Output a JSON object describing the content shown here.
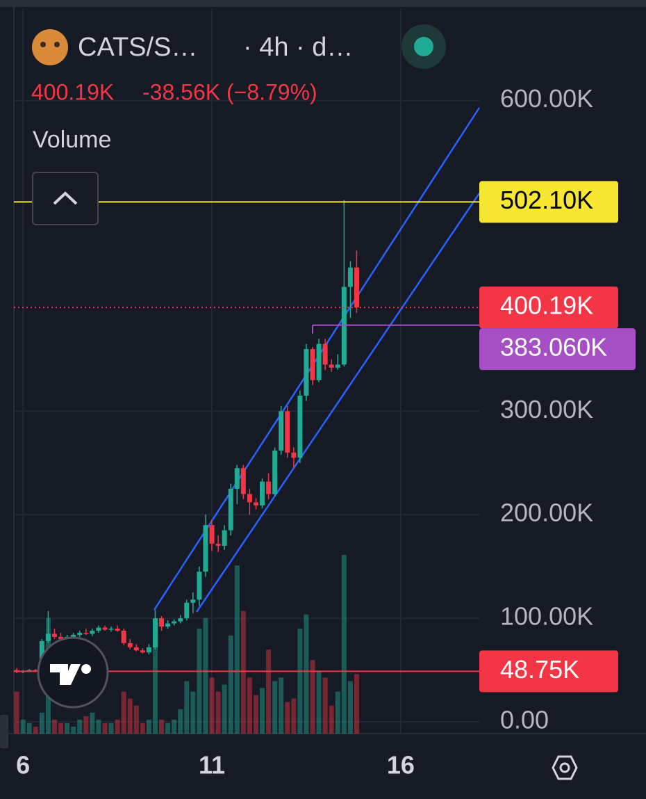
{
  "chart_data": {
    "type": "candlestick",
    "symbol": "CATS/S…",
    "interval": "· 4h · d…",
    "last_price": "400.19K",
    "change": "-38.56K (−8.79%)",
    "indicator": "Volume",
    "up_color": "#22ab94",
    "down_color": "#f23645",
    "x": [
      5.833,
      6,
      6.167,
      6.333,
      6.5,
      6.667,
      6.833,
      7,
      7.167,
      7.333,
      7.5,
      7.667,
      7.833,
      8,
      8.167,
      8.333,
      8.5,
      8.667,
      8.833,
      9,
      9.167,
      9.333,
      9.5,
      9.667,
      9.833,
      10,
      10.167,
      10.333,
      10.5,
      10.667,
      10.833,
      11,
      11.167,
      11.333,
      11.5,
      11.667,
      11.833,
      12,
      12.167,
      12.333,
      12.5,
      12.667,
      12.833,
      13,
      13.167,
      13.333,
      13.5,
      13.667,
      13.833,
      14,
      14.167,
      14.333,
      14.5,
      14.667,
      14.833
    ],
    "open": [
      50,
      48,
      49,
      50,
      49,
      78,
      85,
      82,
      80,
      82,
      84,
      86,
      85,
      88,
      91,
      89,
      90,
      88,
      76,
      72,
      69,
      67,
      72,
      100,
      92,
      95,
      97,
      100,
      115,
      118,
      145,
      190,
      172,
      170,
      185,
      225,
      245,
      220,
      212,
      209,
      232,
      220,
      262,
      300,
      260,
      255,
      315,
      360,
      330,
      365,
      345,
      342,
      345,
      420,
      438.75
    ],
    "high": [
      52,
      50,
      51,
      51,
      80,
      107,
      90,
      86,
      84,
      86,
      88,
      90,
      90,
      93,
      93,
      92,
      93,
      90,
      80,
      75,
      71,
      75,
      108,
      102,
      98,
      99,
      103,
      118,
      125,
      150,
      200,
      195,
      180,
      190,
      230,
      248,
      248,
      225,
      216,
      235,
      240,
      265,
      305,
      305,
      265,
      320,
      365,
      362,
      370,
      370,
      350,
      355,
      504,
      445,
      455
    ],
    "low": [
      47,
      47,
      48,
      48,
      48,
      76,
      80,
      78,
      78,
      80,
      82,
      84,
      83,
      86,
      88,
      87,
      87,
      74,
      70,
      68,
      66,
      65,
      70,
      88,
      90,
      93,
      95,
      98,
      105,
      112,
      140,
      165,
      164,
      166,
      180,
      210,
      215,
      200,
      205,
      206,
      215,
      218,
      258,
      255,
      245,
      250,
      310,
      325,
      328,
      340,
      338,
      340,
      343,
      390,
      395
    ],
    "close": [
      48,
      49,
      50,
      49,
      78,
      85,
      82,
      80,
      82,
      84,
      86,
      85,
      88,
      91,
      89,
      90,
      88,
      76,
      72,
      69,
      67,
      72,
      100,
      92,
      95,
      97,
      100,
      115,
      118,
      145,
      190,
      172,
      170,
      185,
      225,
      245,
      220,
      212,
      209,
      232,
      220,
      262,
      300,
      260,
      255,
      315,
      360,
      330,
      365,
      345,
      342,
      345,
      420,
      438.75,
      400.19
    ],
    "volume": [
      60,
      20,
      15,
      10,
      30,
      165,
      20,
      15,
      15,
      10,
      20,
      25,
      30,
      20,
      15,
      15,
      20,
      60,
      50,
      40,
      15,
      20,
      130,
      20,
      15,
      20,
      35,
      75,
      60,
      150,
      165,
      80,
      60,
      70,
      140,
      240,
      175,
      80,
      55,
      65,
      120,
      75,
      80,
      45,
      50,
      150,
      170,
      105,
      90,
      80,
      40,
      60,
      255,
      75,
      85
    ],
    "xlim": [
      5.39,
      18.08
    ],
    "xticks": [
      6,
      11,
      16
    ],
    "ylim": [
      -11.4,
      697.1
    ],
    "yticks": [
      {
        "value": 600,
        "label": "600.00K"
      },
      {
        "value": 300,
        "label": "300.00K"
      },
      {
        "value": 200,
        "label": "200.00K"
      },
      {
        "value": 100,
        "label": "100.00K"
      },
      {
        "value": 0,
        "label": "0.00"
      }
    ],
    "price_lines": [
      {
        "value": 502.1,
        "label": "502.10K",
        "color": "#f7e733",
        "style": "solid"
      },
      {
        "value": 400.19,
        "label": "400.19K",
        "color": "#f23645",
        "style": "dotted"
      },
      {
        "value": 383.06,
        "label": "383.060K",
        "color": "#a64fc4",
        "style": "solid"
      },
      {
        "value": 48.75,
        "label": "48.75K",
        "color": "#f23645",
        "style": "solid"
      }
    ]
  }
}
